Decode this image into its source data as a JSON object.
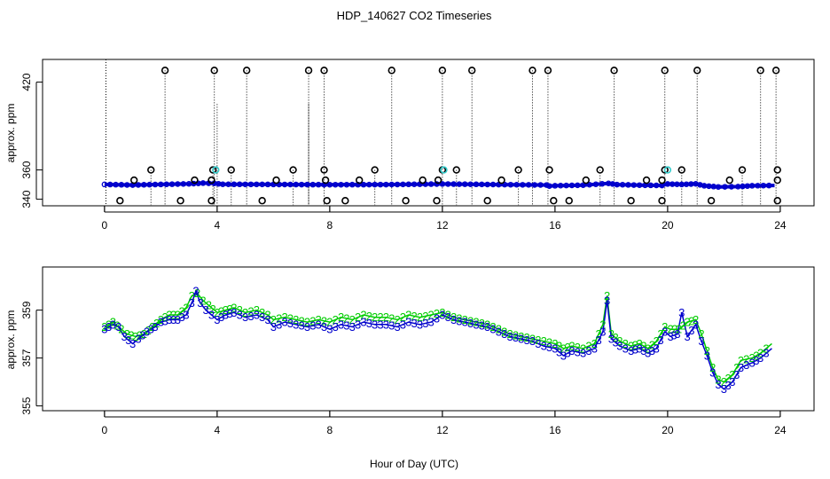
{
  "title": "HDP_140627  CO2 Timeseries",
  "xlabel": "Hour of Day (UTC)",
  "colors": {
    "blue": "#0000cc",
    "green": "#00cc00",
    "cyan": "#33cccc",
    "black": "#000000"
  },
  "chart_data": [
    {
      "type": "scatter",
      "ylabel": "approx. ppm",
      "xlim": [
        -2.2,
        25.2
      ],
      "ylim": [
        335.5,
        435.5
      ],
      "x_ticks": [
        "0",
        "4",
        "8",
        "12",
        "16",
        "20",
        "24"
      ],
      "y_ticks": [
        "340",
        "360",
        "420"
      ],
      "grid": false,
      "baseline": [
        [
          0.0,
          350.1
        ],
        [
          1.0,
          349.7
        ],
        [
          2.0,
          350.1
        ],
        [
          3.0,
          350.5
        ],
        [
          3.5,
          351.0
        ],
        [
          3.9,
          350.8
        ],
        [
          4.2,
          350.2
        ],
        [
          6.0,
          350.1
        ],
        [
          8.0,
          349.9
        ],
        [
          10.0,
          350.0
        ],
        [
          12.0,
          350.4
        ],
        [
          14.0,
          350.0
        ],
        [
          15.7,
          349.7
        ],
        [
          15.8,
          349.0
        ],
        [
          16.0,
          349.2
        ],
        [
          17.0,
          349.6
        ],
        [
          17.9,
          350.8
        ],
        [
          18.2,
          350.0
        ],
        [
          19.0,
          349.6
        ],
        [
          19.8,
          349.4
        ],
        [
          20.0,
          350.4
        ],
        [
          20.5,
          350.1
        ],
        [
          21.0,
          350.5
        ],
        [
          21.3,
          349.2
        ],
        [
          21.8,
          348.4
        ],
        [
          22.5,
          348.6
        ],
        [
          23.0,
          349.2
        ],
        [
          23.8,
          349.4
        ]
      ],
      "high_points": [
        2.15,
        3.9,
        5.05,
        7.25,
        7.8,
        10.2,
        12.0,
        13.05,
        15.2,
        15.75,
        18.1,
        19.9,
        21.05,
        23.3,
        23.85
      ],
      "mid_points": [
        1.65,
        3.85,
        4.5,
        6.7,
        7.8,
        9.6,
        12.0,
        12.5,
        14.7,
        15.8,
        17.6,
        19.9,
        20.5,
        22.65,
        23.9
      ],
      "cyan_points": [
        [
          3.95,
          360
        ],
        [
          12.05,
          360
        ],
        [
          20.0,
          360
        ]
      ],
      "low_points": [
        1.05,
        3.2,
        3.8,
        6.1,
        7.85,
        9.05,
        11.3,
        11.85,
        14.1,
        17.1,
        19.25,
        19.8,
        22.2,
        23.9
      ],
      "bottom_points": [
        0.55,
        2.7,
        3.8,
        5.6,
        7.9,
        8.55,
        10.7,
        11.8,
        13.6,
        15.95,
        16.5,
        18.7,
        19.8,
        21.55,
        23.9
      ],
      "drop_lines": [
        [
          0.05,
          435.5
        ],
        [
          2.15,
          428
        ],
        [
          3.9,
          428
        ],
        [
          4.0,
          405
        ],
        [
          5.05,
          428
        ],
        [
          7.25,
          405
        ],
        [
          7.25,
          428
        ],
        [
          7.8,
          428
        ],
        [
          10.2,
          428
        ],
        [
          12.0,
          428
        ],
        [
          13.05,
          428
        ],
        [
          15.2,
          428
        ],
        [
          15.75,
          428
        ],
        [
          18.1,
          428
        ],
        [
          19.9,
          428
        ],
        [
          21.05,
          428
        ],
        [
          23.3,
          428
        ],
        [
          23.85,
          428
        ],
        [
          1.65,
          360
        ],
        [
          3.85,
          360
        ],
        [
          4.5,
          360
        ],
        [
          6.7,
          360
        ],
        [
          9.6,
          360
        ],
        [
          12.5,
          360
        ],
        [
          14.7,
          360
        ],
        [
          17.6,
          360
        ],
        [
          20.5,
          360
        ],
        [
          22.65,
          360
        ]
      ]
    },
    {
      "type": "line",
      "ylabel": "approx. ppm",
      "xlim": [
        -2.2,
        25.2
      ],
      "ylim": [
        354.8,
        360.8
      ],
      "x_ticks": [
        "0",
        "4",
        "8",
        "12",
        "16",
        "20",
        "24"
      ],
      "y_ticks": [
        "355",
        "357",
        "359"
      ],
      "grid": false,
      "series": [
        {
          "marker": "3",
          "color": "#0000cc",
          "points": [
            [
              0.0,
              358.2
            ],
            [
              0.3,
              358.4
            ],
            [
              0.5,
              358.3
            ],
            [
              0.7,
              357.9
            ],
            [
              1.0,
              357.6
            ],
            [
              1.2,
              357.8
            ],
            [
              1.5,
              358.1
            ],
            [
              1.8,
              358.3
            ],
            [
              2.0,
              358.5
            ],
            [
              2.3,
              358.6
            ],
            [
              2.6,
              358.6
            ],
            [
              2.9,
              358.8
            ],
            [
              3.1,
              359.3
            ],
            [
              3.25,
              359.8
            ],
            [
              3.4,
              359.3
            ],
            [
              3.6,
              359.0
            ],
            [
              3.8,
              358.8
            ],
            [
              4.0,
              358.6
            ],
            [
              4.3,
              358.8
            ],
            [
              4.6,
              358.9
            ],
            [
              5.0,
              358.7
            ],
            [
              5.4,
              358.8
            ],
            [
              5.8,
              358.6
            ],
            [
              6.0,
              358.3
            ],
            [
              6.4,
              358.5
            ],
            [
              6.8,
              358.4
            ],
            [
              7.2,
              358.3
            ],
            [
              7.6,
              358.4
            ],
            [
              8.0,
              358.2
            ],
            [
              8.4,
              358.4
            ],
            [
              8.8,
              358.3
            ],
            [
              9.2,
              358.5
            ],
            [
              9.6,
              358.4
            ],
            [
              10.0,
              358.4
            ],
            [
              10.4,
              358.3
            ],
            [
              10.8,
              358.5
            ],
            [
              11.2,
              358.4
            ],
            [
              11.6,
              358.5
            ],
            [
              12.0,
              358.8
            ],
            [
              12.4,
              358.6
            ],
            [
              12.8,
              358.5
            ],
            [
              13.2,
              358.4
            ],
            [
              13.6,
              358.3
            ],
            [
              14.0,
              358.1
            ],
            [
              14.4,
              357.9
            ],
            [
              14.8,
              357.8
            ],
            [
              15.2,
              357.7
            ],
            [
              15.6,
              357.5
            ],
            [
              16.0,
              357.4
            ],
            [
              16.3,
              357.1
            ],
            [
              16.6,
              357.3
            ],
            [
              17.0,
              357.2
            ],
            [
              17.4,
              357.4
            ],
            [
              17.7,
              358.1
            ],
            [
              17.85,
              359.4
            ],
            [
              18.0,
              357.8
            ],
            [
              18.3,
              357.5
            ],
            [
              18.7,
              357.3
            ],
            [
              19.0,
              357.4
            ],
            [
              19.3,
              357.2
            ],
            [
              19.6,
              357.4
            ],
            [
              19.9,
              358.1
            ],
            [
              20.1,
              357.9
            ],
            [
              20.35,
              358.0
            ],
            [
              20.5,
              358.9
            ],
            [
              20.7,
              357.9
            ],
            [
              21.0,
              358.4
            ],
            [
              21.2,
              357.7
            ],
            [
              21.4,
              357.1
            ],
            [
              21.6,
              356.4
            ],
            [
              21.8,
              355.9
            ],
            [
              22.0,
              355.7
            ],
            [
              22.3,
              356.0
            ],
            [
              22.6,
              356.6
            ],
            [
              23.0,
              356.8
            ],
            [
              23.3,
              357.0
            ],
            [
              23.7,
              357.4
            ]
          ]
        },
        {
          "marker": "2",
          "color": "#00cc00",
          "points": [
            [
              0.0,
              358.3
            ],
            [
              0.3,
              358.5
            ],
            [
              0.6,
              358.2
            ],
            [
              0.8,
              358.0
            ],
            [
              1.1,
              357.9
            ],
            [
              1.4,
              358.0
            ],
            [
              1.7,
              358.3
            ],
            [
              2.0,
              358.6
            ],
            [
              2.3,
              358.8
            ],
            [
              2.6,
              358.8
            ],
            [
              2.9,
              359.1
            ],
            [
              3.1,
              359.6
            ],
            [
              3.3,
              359.7
            ],
            [
              3.5,
              359.4
            ],
            [
              3.7,
              359.2
            ],
            [
              4.0,
              358.9
            ],
            [
              4.3,
              359.0
            ],
            [
              4.6,
              359.1
            ],
            [
              5.0,
              358.9
            ],
            [
              5.4,
              359.0
            ],
            [
              5.8,
              358.8
            ],
            [
              6.0,
              358.6
            ],
            [
              6.4,
              358.7
            ],
            [
              6.8,
              358.6
            ],
            [
              7.2,
              358.5
            ],
            [
              7.6,
              358.6
            ],
            [
              8.0,
              358.5
            ],
            [
              8.4,
              358.7
            ],
            [
              8.8,
              358.6
            ],
            [
              9.2,
              358.8
            ],
            [
              9.6,
              358.7
            ],
            [
              10.0,
              358.7
            ],
            [
              10.4,
              358.6
            ],
            [
              10.8,
              358.8
            ],
            [
              11.2,
              358.7
            ],
            [
              11.6,
              358.8
            ],
            [
              12.0,
              358.9
            ],
            [
              12.4,
              358.7
            ],
            [
              12.8,
              358.6
            ],
            [
              13.2,
              358.5
            ],
            [
              13.6,
              358.4
            ],
            [
              14.0,
              358.2
            ],
            [
              14.4,
              358.0
            ],
            [
              14.8,
              357.9
            ],
            [
              15.2,
              357.8
            ],
            [
              15.6,
              357.7
            ],
            [
              16.0,
              357.6
            ],
            [
              16.3,
              357.4
            ],
            [
              16.6,
              357.5
            ],
            [
              17.0,
              357.4
            ],
            [
              17.4,
              357.6
            ],
            [
              17.7,
              358.4
            ],
            [
              17.85,
              359.6
            ],
            [
              18.0,
              358.0
            ],
            [
              18.3,
              357.7
            ],
            [
              18.7,
              357.5
            ],
            [
              19.0,
              357.6
            ],
            [
              19.3,
              357.4
            ],
            [
              19.6,
              357.7
            ],
            [
              19.9,
              358.3
            ],
            [
              20.1,
              358.2
            ],
            [
              20.4,
              358.2
            ],
            [
              20.7,
              358.5
            ],
            [
              21.0,
              358.6
            ],
            [
              21.2,
              358.0
            ],
            [
              21.4,
              357.3
            ],
            [
              21.6,
              356.6
            ],
            [
              21.8,
              356.1
            ],
            [
              22.0,
              356.0
            ],
            [
              22.3,
              356.3
            ],
            [
              22.6,
              356.9
            ],
            [
              23.0,
              357.0
            ],
            [
              23.3,
              357.2
            ],
            [
              23.7,
              357.6
            ]
          ]
        }
      ]
    }
  ]
}
